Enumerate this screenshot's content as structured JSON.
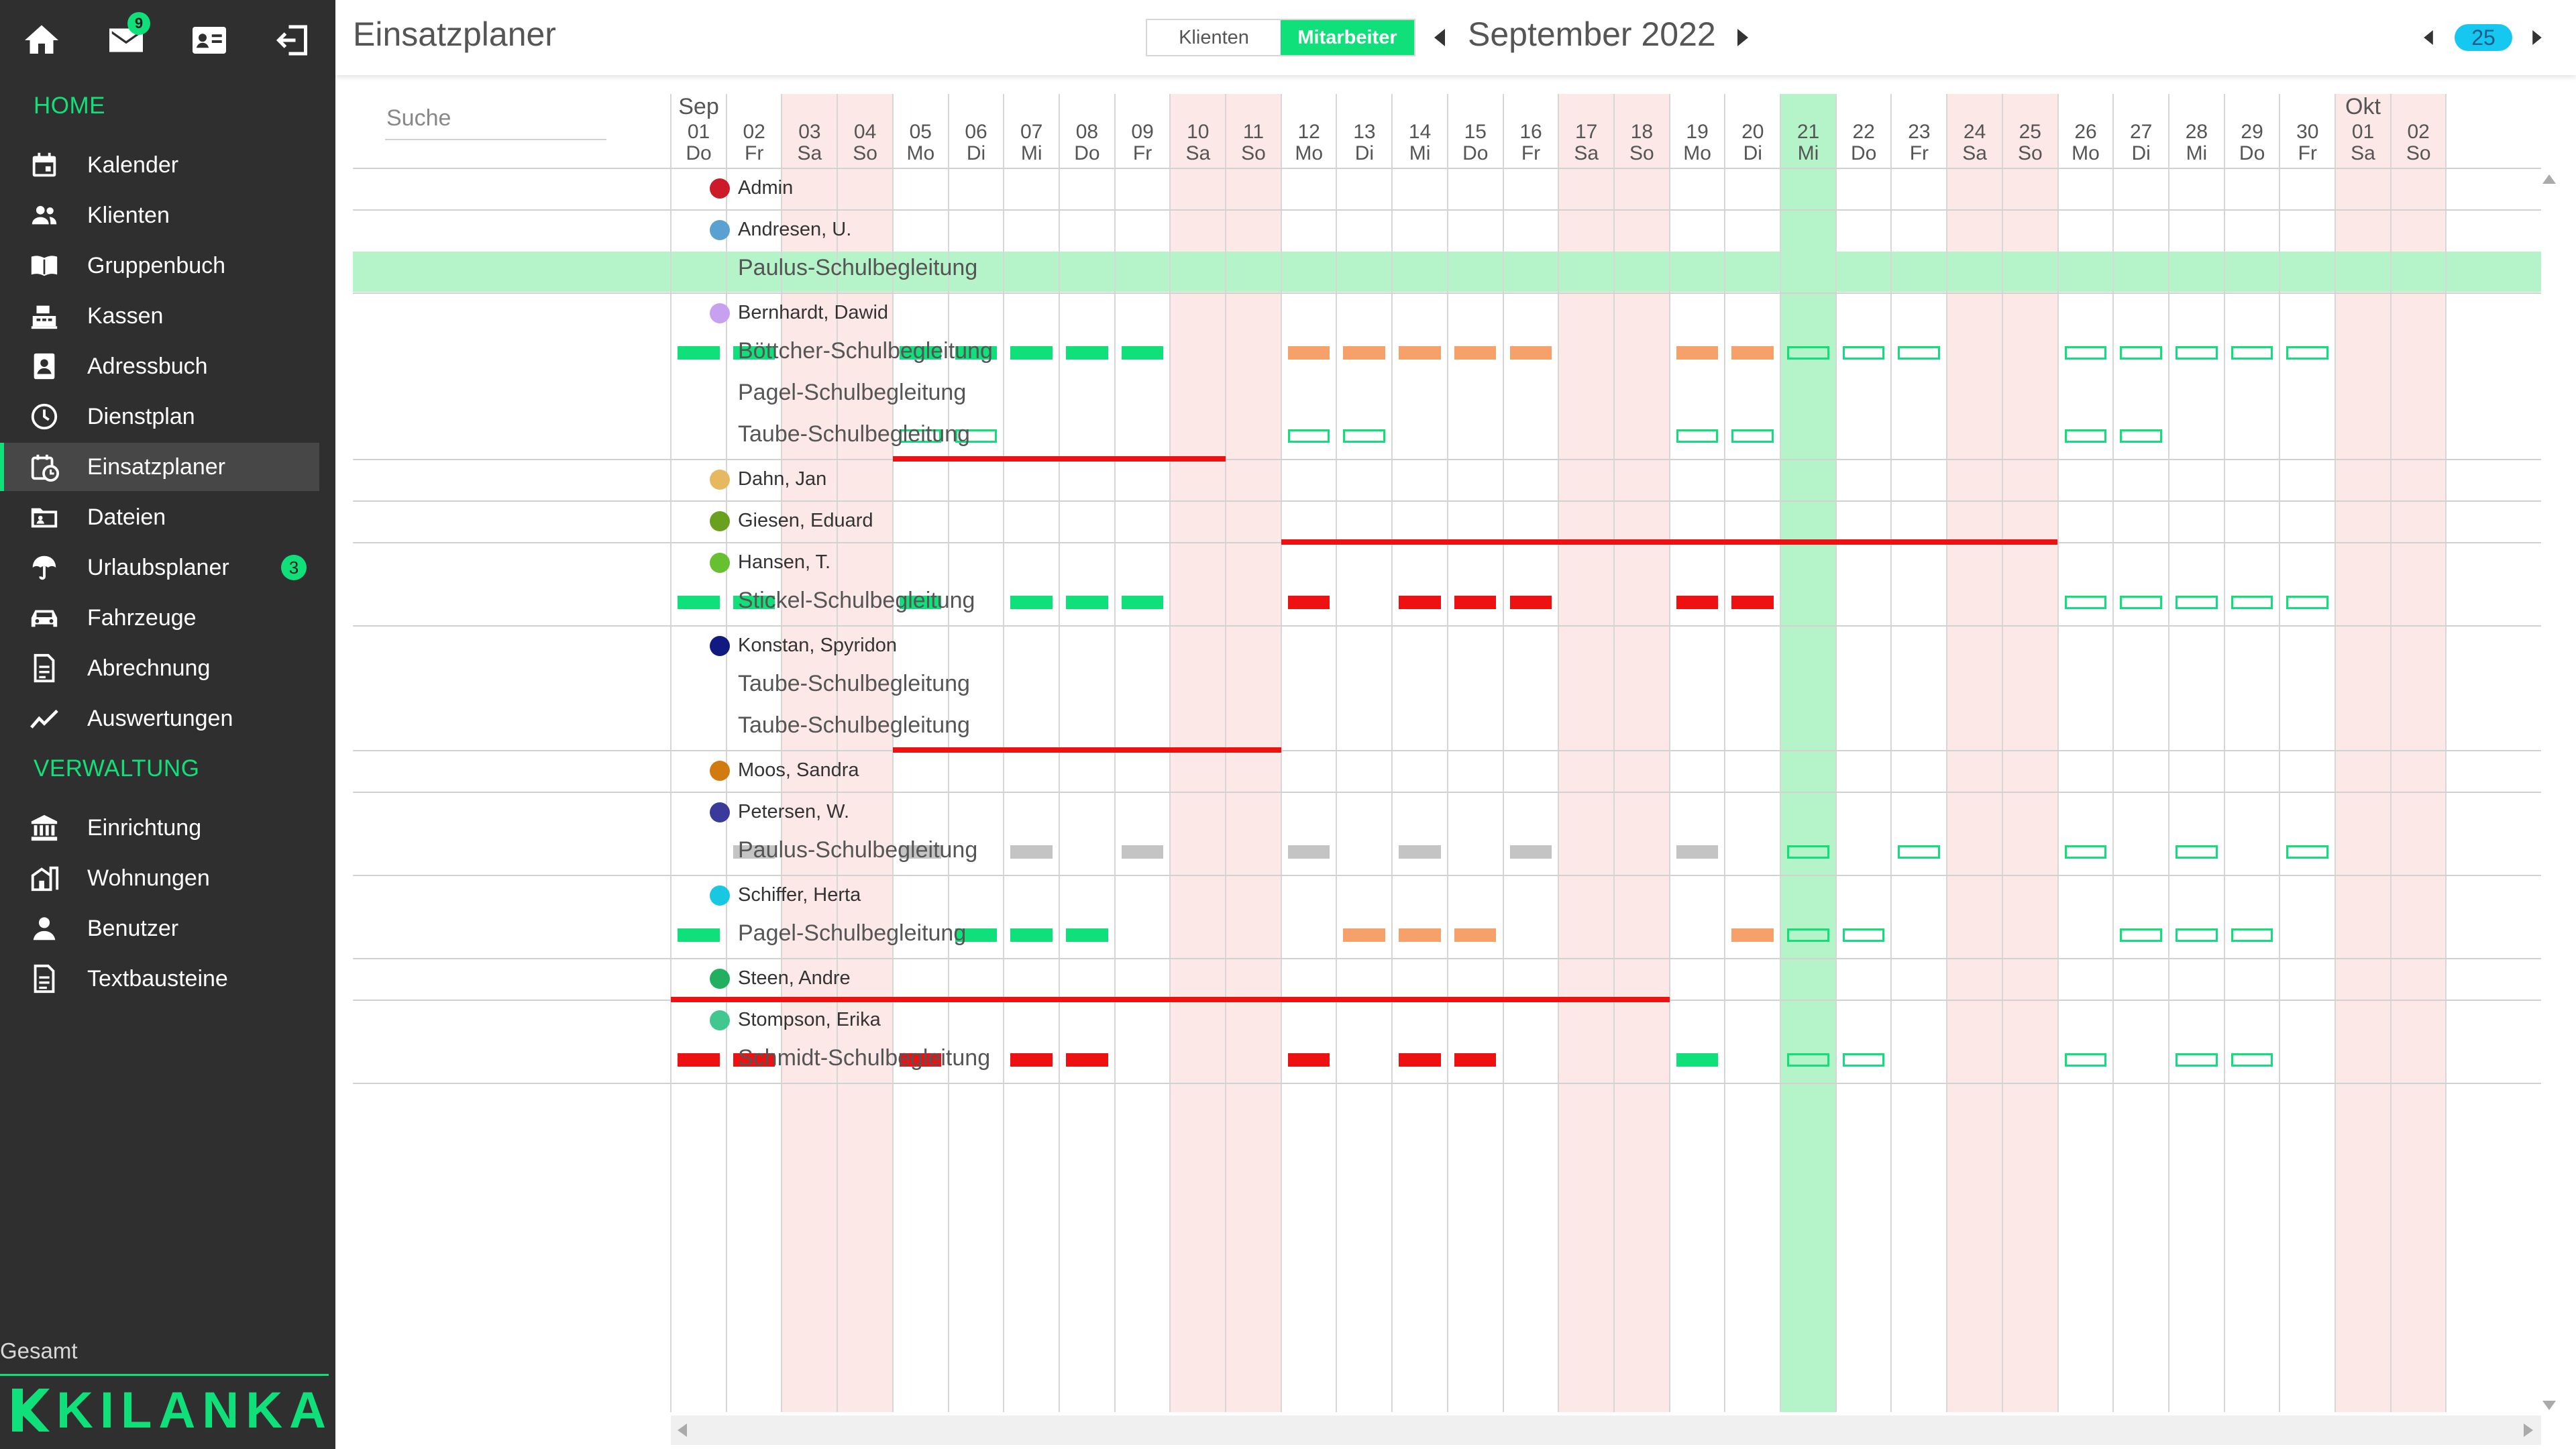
{
  "header": {
    "title": "Einsatzplaner",
    "toggle": {
      "klienten": "Klienten",
      "mitarbeiter": "Mitarbeiter",
      "selected": "mitarbeiter"
    },
    "month": "September 2022",
    "week": "25"
  },
  "sidebar": {
    "mail_badge": "9",
    "home_label": "HOME",
    "verwaltung_label": "VERWALTUNG",
    "home_items": [
      {
        "label": "Kalender",
        "icon": "calendar-icon"
      },
      {
        "label": "Klienten",
        "icon": "people-icon"
      },
      {
        "label": "Gruppenbuch",
        "icon": "book-icon"
      },
      {
        "label": "Kassen",
        "icon": "cash-register-icon"
      },
      {
        "label": "Adressbuch",
        "icon": "address-book-icon"
      },
      {
        "label": "Dienstplan",
        "icon": "clock-icon"
      },
      {
        "label": "Einsatzplaner",
        "icon": "planner-icon",
        "active": true
      },
      {
        "label": "Dateien",
        "icon": "folder-icon"
      },
      {
        "label": "Urlaubsplaner",
        "icon": "umbrella-icon",
        "badge": "3"
      },
      {
        "label": "Fahrzeuge",
        "icon": "car-icon"
      },
      {
        "label": "Abrechnung",
        "icon": "document-icon"
      },
      {
        "label": "Auswertungen",
        "icon": "chart-line-icon"
      }
    ],
    "admin_items": [
      {
        "label": "Einrichtung",
        "icon": "building-icon"
      },
      {
        "label": "Wohnungen",
        "icon": "house-icon"
      },
      {
        "label": "Benutzer",
        "icon": "user-icon"
      },
      {
        "label": "Textbausteine",
        "icon": "text-document-icon"
      }
    ],
    "gesamt": "Gesamt",
    "logo": "KILANKA"
  },
  "search": {
    "placeholder": "Suche"
  },
  "calendar": {
    "days": [
      {
        "n": "01",
        "d": "Do",
        "month": "Sep"
      },
      {
        "n": "02",
        "d": "Fr"
      },
      {
        "n": "03",
        "d": "Sa",
        "weekend": true
      },
      {
        "n": "04",
        "d": "So",
        "weekend": true
      },
      {
        "n": "05",
        "d": "Mo"
      },
      {
        "n": "06",
        "d": "Di"
      },
      {
        "n": "07",
        "d": "Mi"
      },
      {
        "n": "08",
        "d": "Do"
      },
      {
        "n": "09",
        "d": "Fr"
      },
      {
        "n": "10",
        "d": "Sa",
        "weekend": true
      },
      {
        "n": "11",
        "d": "So",
        "weekend": true
      },
      {
        "n": "12",
        "d": "Mo"
      },
      {
        "n": "13",
        "d": "Di"
      },
      {
        "n": "14",
        "d": "Mi"
      },
      {
        "n": "15",
        "d": "Do"
      },
      {
        "n": "16",
        "d": "Fr"
      },
      {
        "n": "17",
        "d": "Sa",
        "weekend": true
      },
      {
        "n": "18",
        "d": "So",
        "weekend": true
      },
      {
        "n": "19",
        "d": "Mo"
      },
      {
        "n": "20",
        "d": "Di"
      },
      {
        "n": "21",
        "d": "Mi",
        "today": true
      },
      {
        "n": "22",
        "d": "Do"
      },
      {
        "n": "23",
        "d": "Fr"
      },
      {
        "n": "24",
        "d": "Sa",
        "weekend": true
      },
      {
        "n": "25",
        "d": "So",
        "weekend": true
      },
      {
        "n": "26",
        "d": "Mo"
      },
      {
        "n": "27",
        "d": "Di"
      },
      {
        "n": "28",
        "d": "Mi"
      },
      {
        "n": "29",
        "d": "Do"
      },
      {
        "n": "30",
        "d": "Fr"
      },
      {
        "n": "01",
        "d": "Sa",
        "weekend": true,
        "month": "Okt"
      },
      {
        "n": "02",
        "d": "So",
        "weekend": true
      }
    ],
    "colors": {
      "green": "#10e07a",
      "orange": "#f6a06a",
      "red": "#ee1111",
      "gray": "#c4c4c4",
      "weekend": "#fde8e8",
      "today": "#b4f4c8"
    },
    "employees": [
      {
        "name": "Admin",
        "color": "#cc1a2a",
        "assignments": [],
        "vacations": []
      },
      {
        "name": "Andresen, U.",
        "color": "#5aa0d0",
        "highlight": true,
        "assignments": [
          {
            "name": "Paulus-Schulbegleitung",
            "bars": []
          }
        ],
        "vacations": []
      },
      {
        "name": "Bernhardt, Dawid",
        "color": "#c8a0f0",
        "assignments": [
          {
            "name": "Böttcher-Schulbegleitung",
            "bars": [
              {
                "day": 1,
                "t": "green"
              },
              {
                "day": 2,
                "t": "green"
              },
              {
                "day": 5,
                "t": "green"
              },
              {
                "day": 6,
                "t": "green"
              },
              {
                "day": 7,
                "t": "green"
              },
              {
                "day": 8,
                "t": "green"
              },
              {
                "day": 9,
                "t": "green"
              },
              {
                "day": 12,
                "t": "orange"
              },
              {
                "day": 13,
                "t": "orange"
              },
              {
                "day": 14,
                "t": "orange"
              },
              {
                "day": 15,
                "t": "orange"
              },
              {
                "day": 16,
                "t": "orange"
              },
              {
                "day": 19,
                "t": "orange"
              },
              {
                "day": 20,
                "t": "orange"
              },
              {
                "day": 21,
                "t": "outline"
              },
              {
                "day": 22,
                "t": "outline"
              },
              {
                "day": 23,
                "t": "outline"
              },
              {
                "day": 26,
                "t": "outline"
              },
              {
                "day": 27,
                "t": "outline"
              },
              {
                "day": 28,
                "t": "outline"
              },
              {
                "day": 29,
                "t": "outline"
              },
              {
                "day": 30,
                "t": "outline"
              }
            ]
          },
          {
            "name": "Pagel-Schulbegleitung",
            "bars": []
          },
          {
            "name": "Taube-Schulbegleitung",
            "bars": [
              {
                "day": 5,
                "t": "outline"
              },
              {
                "day": 6,
                "t": "outline"
              },
              {
                "day": 12,
                "t": "outline"
              },
              {
                "day": 13,
                "t": "outline"
              },
              {
                "day": 19,
                "t": "outline"
              },
              {
                "day": 20,
                "t": "outline"
              },
              {
                "day": 26,
                "t": "outline"
              },
              {
                "day": 27,
                "t": "outline"
              }
            ]
          }
        ],
        "vacations": [
          {
            "from": 5,
            "to": 10
          }
        ]
      },
      {
        "name": "Dahn, Jan",
        "color": "#e6b860",
        "assignments": [],
        "vacations": []
      },
      {
        "name": "Giesen, Eduard",
        "color": "#6aa020",
        "assignments": [],
        "vacations": [
          {
            "from": 12,
            "to": 25
          }
        ]
      },
      {
        "name": "Hansen, T.",
        "color": "#66c030",
        "assignments": [
          {
            "name": "Stickel-Schulbegleitung",
            "bars": [
              {
                "day": 1,
                "t": "green"
              },
              {
                "day": 2,
                "t": "green"
              },
              {
                "day": 5,
                "t": "green"
              },
              {
                "day": 7,
                "t": "green"
              },
              {
                "day": 8,
                "t": "green"
              },
              {
                "day": 9,
                "t": "green"
              },
              {
                "day": 12,
                "t": "red"
              },
              {
                "day": 14,
                "t": "red"
              },
              {
                "day": 15,
                "t": "red"
              },
              {
                "day": 16,
                "t": "red"
              },
              {
                "day": 19,
                "t": "red"
              },
              {
                "day": 20,
                "t": "red"
              },
              {
                "day": 26,
                "t": "outline"
              },
              {
                "day": 27,
                "t": "outline"
              },
              {
                "day": 28,
                "t": "outline"
              },
              {
                "day": 29,
                "t": "outline"
              },
              {
                "day": 30,
                "t": "outline"
              }
            ]
          }
        ],
        "vacations": []
      },
      {
        "name": "Konstan, Spyridon",
        "color": "#101a80",
        "assignments": [
          {
            "name": "Taube-Schulbegleitung",
            "bars": []
          },
          {
            "name": "Taube-Schulbegleitung",
            "bars": []
          }
        ],
        "vacations": [
          {
            "from": 5,
            "to": 11
          }
        ]
      },
      {
        "name": "Moos, Sandra",
        "color": "#d07a10",
        "assignments": [],
        "vacations": []
      },
      {
        "name": "Petersen, W.",
        "color": "#3a3a9a",
        "assignments": [
          {
            "name": "Paulus-Schulbegleitung",
            "bars": [
              {
                "day": 2,
                "t": "gray"
              },
              {
                "day": 5,
                "t": "gray"
              },
              {
                "day": 7,
                "t": "gray"
              },
              {
                "day": 9,
                "t": "gray"
              },
              {
                "day": 12,
                "t": "gray"
              },
              {
                "day": 14,
                "t": "gray"
              },
              {
                "day": 16,
                "t": "gray"
              },
              {
                "day": 19,
                "t": "gray"
              },
              {
                "day": 21,
                "t": "outline"
              },
              {
                "day": 23,
                "t": "outline"
              },
              {
                "day": 26,
                "t": "outline"
              },
              {
                "day": 28,
                "t": "outline"
              },
              {
                "day": 30,
                "t": "outline"
              }
            ]
          }
        ],
        "vacations": []
      },
      {
        "name": "Schiffer, Herta",
        "color": "#18c8e0",
        "assignments": [
          {
            "name": "Pagel-Schulbegleitung",
            "bars": [
              {
                "day": 1,
                "t": "green"
              },
              {
                "day": 6,
                "t": "green"
              },
              {
                "day": 7,
                "t": "green"
              },
              {
                "day": 8,
                "t": "green"
              },
              {
                "day": 13,
                "t": "orange"
              },
              {
                "day": 14,
                "t": "orange"
              },
              {
                "day": 15,
                "t": "orange"
              },
              {
                "day": 20,
                "t": "orange"
              },
              {
                "day": 21,
                "t": "outline"
              },
              {
                "day": 22,
                "t": "outline"
              },
              {
                "day": 27,
                "t": "outline"
              },
              {
                "day": 28,
                "t": "outline"
              },
              {
                "day": 29,
                "t": "outline"
              }
            ]
          }
        ],
        "vacations": []
      },
      {
        "name": "Steen, Andre",
        "color": "#22b060",
        "assignments": [],
        "vacations": [
          {
            "from": 1,
            "to": 18
          }
        ]
      },
      {
        "name": "Stompson, Erika",
        "color": "#40c890",
        "assignments": [
          {
            "name": "Schmidt-Schulbegleitung",
            "bars": [
              {
                "day": 1,
                "t": "red"
              },
              {
                "day": 2,
                "t": "red"
              },
              {
                "day": 5,
                "t": "red"
              },
              {
                "day": 7,
                "t": "red"
              },
              {
                "day": 8,
                "t": "red"
              },
              {
                "day": 12,
                "t": "red"
              },
              {
                "day": 14,
                "t": "red"
              },
              {
                "day": 15,
                "t": "red"
              },
              {
                "day": 19,
                "t": "green"
              },
              {
                "day": 21,
                "t": "outline"
              },
              {
                "day": 22,
                "t": "outline"
              },
              {
                "day": 26,
                "t": "outline"
              },
              {
                "day": 28,
                "t": "outline"
              },
              {
                "day": 29,
                "t": "outline"
              }
            ]
          }
        ],
        "vacations": []
      }
    ]
  }
}
